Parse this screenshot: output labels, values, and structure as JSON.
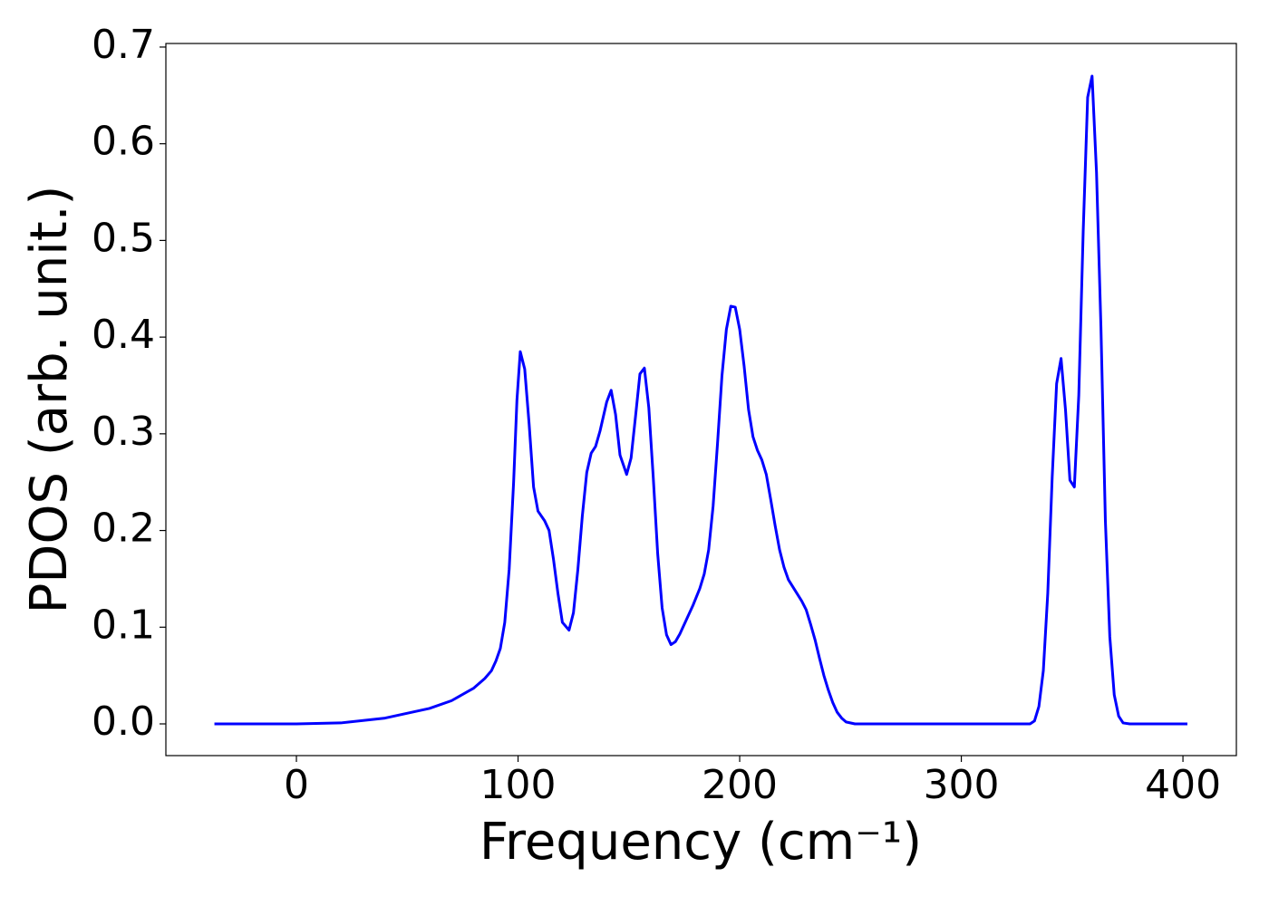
{
  "chart_data": {
    "type": "line",
    "xlabel": "Frequency (cm⁻¹)",
    "ylabel": "PDOS (arb. unit.)",
    "xlim": [
      -58.9,
      424.1
    ],
    "ylim": [
      -0.0328,
      0.7037
    ],
    "xticks": [
      0,
      100,
      200,
      300,
      400
    ],
    "yticks": [
      {
        "value": 0,
        "label": "0.0"
      },
      0.1,
      0.2,
      0.3,
      0.4,
      0.5,
      0.6,
      0.7
    ],
    "grid": false,
    "x": [
      -37,
      0,
      20,
      40,
      60,
      70,
      80,
      85,
      88,
      90,
      92,
      94,
      96,
      98,
      99.5,
      101,
      103,
      105,
      107,
      109,
      112,
      114,
      116,
      118,
      120,
      123,
      125,
      127,
      129,
      131,
      133,
      135,
      137,
      140,
      142,
      144,
      146,
      149,
      151,
      153,
      155,
      157,
      159,
      161,
      163,
      165,
      167,
      169,
      171,
      173,
      176,
      179,
      182,
      184,
      186,
      188,
      190,
      192,
      194,
      196,
      198,
      200,
      202,
      204,
      206,
      208,
      210,
      212,
      214,
      216,
      218,
      220,
      222,
      225,
      228,
      230,
      232,
      234,
      236,
      238,
      240,
      242,
      244,
      246,
      248,
      252,
      300,
      331,
      333,
      335,
      337,
      339,
      341,
      343,
      345,
      347,
      349,
      351,
      353,
      355,
      357,
      359,
      361,
      363,
      365,
      367,
      369,
      371,
      373,
      376,
      402
    ],
    "series": [
      {
        "name": "PDOS",
        "color": "#0000ff",
        "values": [
          0,
          0,
          0.001,
          0.006,
          0.016,
          0.024,
          0.037,
          0.047,
          0.055,
          0.065,
          0.078,
          0.105,
          0.16,
          0.25,
          0.335,
          0.385,
          0.367,
          0.31,
          0.245,
          0.22,
          0.21,
          0.2,
          0.17,
          0.135,
          0.105,
          0.097,
          0.115,
          0.16,
          0.215,
          0.26,
          0.28,
          0.287,
          0.303,
          0.333,
          0.345,
          0.32,
          0.278,
          0.258,
          0.275,
          0.318,
          0.362,
          0.368,
          0.327,
          0.255,
          0.176,
          0.12,
          0.092,
          0.082,
          0.085,
          0.093,
          0.108,
          0.123,
          0.14,
          0.155,
          0.18,
          0.225,
          0.29,
          0.36,
          0.408,
          0.432,
          0.431,
          0.408,
          0.37,
          0.325,
          0.297,
          0.283,
          0.273,
          0.258,
          0.232,
          0.205,
          0.18,
          0.162,
          0.149,
          0.138,
          0.127,
          0.118,
          0.103,
          0.087,
          0.068,
          0.05,
          0.035,
          0.022,
          0.012,
          0.006,
          0.002,
          0,
          0,
          0,
          0.003,
          0.018,
          0.055,
          0.135,
          0.255,
          0.352,
          0.378,
          0.325,
          0.252,
          0.245,
          0.34,
          0.51,
          0.648,
          0.67,
          0.57,
          0.41,
          0.21,
          0.09,
          0.03,
          0.008,
          0.001,
          0,
          0
        ]
      }
    ]
  }
}
